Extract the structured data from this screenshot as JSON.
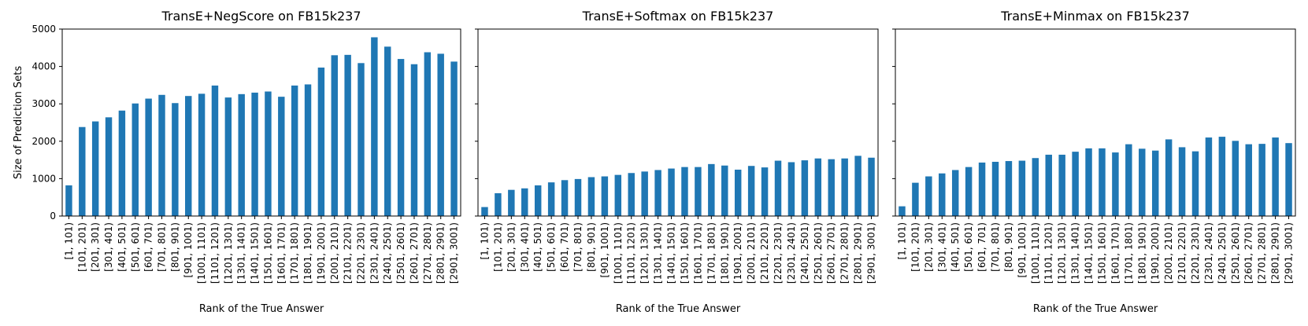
{
  "chart_data": [
    {
      "type": "bar",
      "title": "TransE+NegScore on FB15k237",
      "xlabel": "Rank of the True Answer",
      "ylabel": "Size of Prediction Sets",
      "ylim": [
        0,
        5000
      ],
      "yticks": [
        0,
        1000,
        2000,
        3000,
        4000,
        5000
      ],
      "color": "#1f77b4",
      "categories": [
        "[1, 101)",
        "[101, 201)",
        "[201, 301)",
        "[301, 401)",
        "[401, 501)",
        "[501, 601)",
        "[601, 701)",
        "[701, 801)",
        "[801, 901)",
        "[901, 1001)",
        "[1001, 1101)",
        "[1101, 1201)",
        "[1201, 1301)",
        "[1301, 1401)",
        "[1401, 1501)",
        "[1501, 1601)",
        "[1601, 1701)",
        "[1701, 1801)",
        "[1801, 1901)",
        "[1901, 2001)",
        "[2001, 2101)",
        "[2101, 2201)",
        "[2201, 2301)",
        "[2301, 2401)",
        "[2401, 2501)",
        "[2501, 2601)",
        "[2601, 2701)",
        "[2701, 2801)",
        "[2801, 2901)",
        "[2901, 3001)"
      ],
      "values": [
        820,
        2380,
        2530,
        2640,
        2820,
        3010,
        3140,
        3240,
        3020,
        3210,
        3270,
        3490,
        3170,
        3260,
        3300,
        3330,
        3190,
        3490,
        3520,
        3970,
        4300,
        4310,
        4090,
        4780,
        4530,
        4200,
        4060,
        4380,
        4340,
        4130
      ]
    },
    {
      "type": "bar",
      "title": "TransE+Softmax on FB15k237",
      "xlabel": "Rank of the True Answer",
      "ylabel": "",
      "ylim": [
        0,
        5000
      ],
      "yticks": [
        0,
        1000,
        2000,
        3000,
        4000,
        5000
      ],
      "color": "#1f77b4",
      "categories": [
        "[1, 101)",
        "[101, 201)",
        "[201, 301)",
        "[301, 401)",
        "[401, 501)",
        "[501, 601)",
        "[601, 701)",
        "[701, 801)",
        "[801, 901)",
        "[901, 1001)",
        "[1001, 1101)",
        "[1101, 1201)",
        "[1201, 1301)",
        "[1301, 1401)",
        "[1401, 1501)",
        "[1501, 1601)",
        "[1601, 1701)",
        "[1701, 1801)",
        "[1801, 1901)",
        "[1901, 2001)",
        "[2001, 2101)",
        "[2101, 2201)",
        "[2201, 2301)",
        "[2301, 2401)",
        "[2401, 2501)",
        "[2501, 2601)",
        "[2601, 2701)",
        "[2701, 2801)",
        "[2801, 2901)",
        "[2901, 3001)"
      ],
      "values": [
        240,
        610,
        700,
        740,
        820,
        900,
        960,
        990,
        1040,
        1060,
        1100,
        1150,
        1190,
        1230,
        1270,
        1310,
        1310,
        1390,
        1350,
        1240,
        1340,
        1300,
        1480,
        1440,
        1490,
        1540,
        1520,
        1540,
        1610,
        1560
      ]
    },
    {
      "type": "bar",
      "title": "TransE+Minmax on FB15k237",
      "xlabel": "Rank of the True Answer",
      "ylabel": "",
      "ylim": [
        0,
        5000
      ],
      "yticks": [
        0,
        1000,
        2000,
        3000,
        4000,
        5000
      ],
      "color": "#1f77b4",
      "categories": [
        "[1, 101)",
        "[101, 201)",
        "[201, 301)",
        "[301, 401)",
        "[401, 501)",
        "[501, 601)",
        "[601, 701)",
        "[701, 801)",
        "[801, 901)",
        "[901, 1001)",
        "[1001, 1101)",
        "[1101, 1201)",
        "[1201, 1301)",
        "[1301, 1401)",
        "[1401, 1501)",
        "[1501, 1601)",
        "[1601, 1701)",
        "[1701, 1801)",
        "[1801, 1901)",
        "[1901, 2001)",
        "[2001, 2101)",
        "[2101, 2201)",
        "[2201, 2301)",
        "[2301, 2401)",
        "[2401, 2501)",
        "[2501, 2601)",
        "[2601, 2701)",
        "[2701, 2801)",
        "[2801, 2901)",
        "[2901, 3001)"
      ],
      "values": [
        260,
        890,
        1060,
        1140,
        1230,
        1310,
        1430,
        1450,
        1470,
        1480,
        1550,
        1640,
        1640,
        1720,
        1810,
        1810,
        1700,
        1920,
        1800,
        1750,
        2050,
        1840,
        1730,
        2100,
        2120,
        2010,
        1920,
        1930,
        2100,
        1950
      ]
    }
  ]
}
